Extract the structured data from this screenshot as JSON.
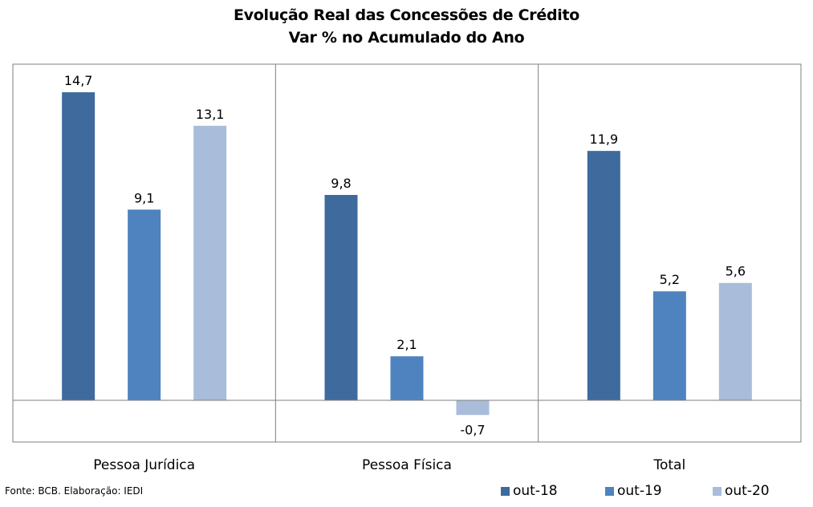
{
  "title": "Evolução Real das Concessões de Crédito",
  "subtitle": "Var % no Acumulado do Ano",
  "source": "Fonte: BCB. Elaboração: IEDI",
  "colors": {
    "out-18": "#3e6a9e",
    "out-19": "#4f83bf",
    "out-20": "#a9bcda"
  },
  "chart_data": {
    "type": "bar",
    "categories": [
      "Pessoa Jurídica",
      "Pessoa Física",
      "Total"
    ],
    "series": [
      {
        "name": "out-18",
        "values": [
          14.7,
          9.8,
          11.9
        ],
        "labels": [
          "14,7",
          "9,8",
          "11,9"
        ]
      },
      {
        "name": "out-19",
        "values": [
          9.1,
          2.1,
          5.2
        ],
        "labels": [
          "9,1",
          "2,1",
          "5,2"
        ]
      },
      {
        "name": "out-20",
        "values": [
          13.1,
          -0.7,
          5.6
        ],
        "labels": [
          "13,1",
          "-0,7",
          "5,6"
        ]
      }
    ],
    "legend": "bottom-right",
    "grid": false
  }
}
